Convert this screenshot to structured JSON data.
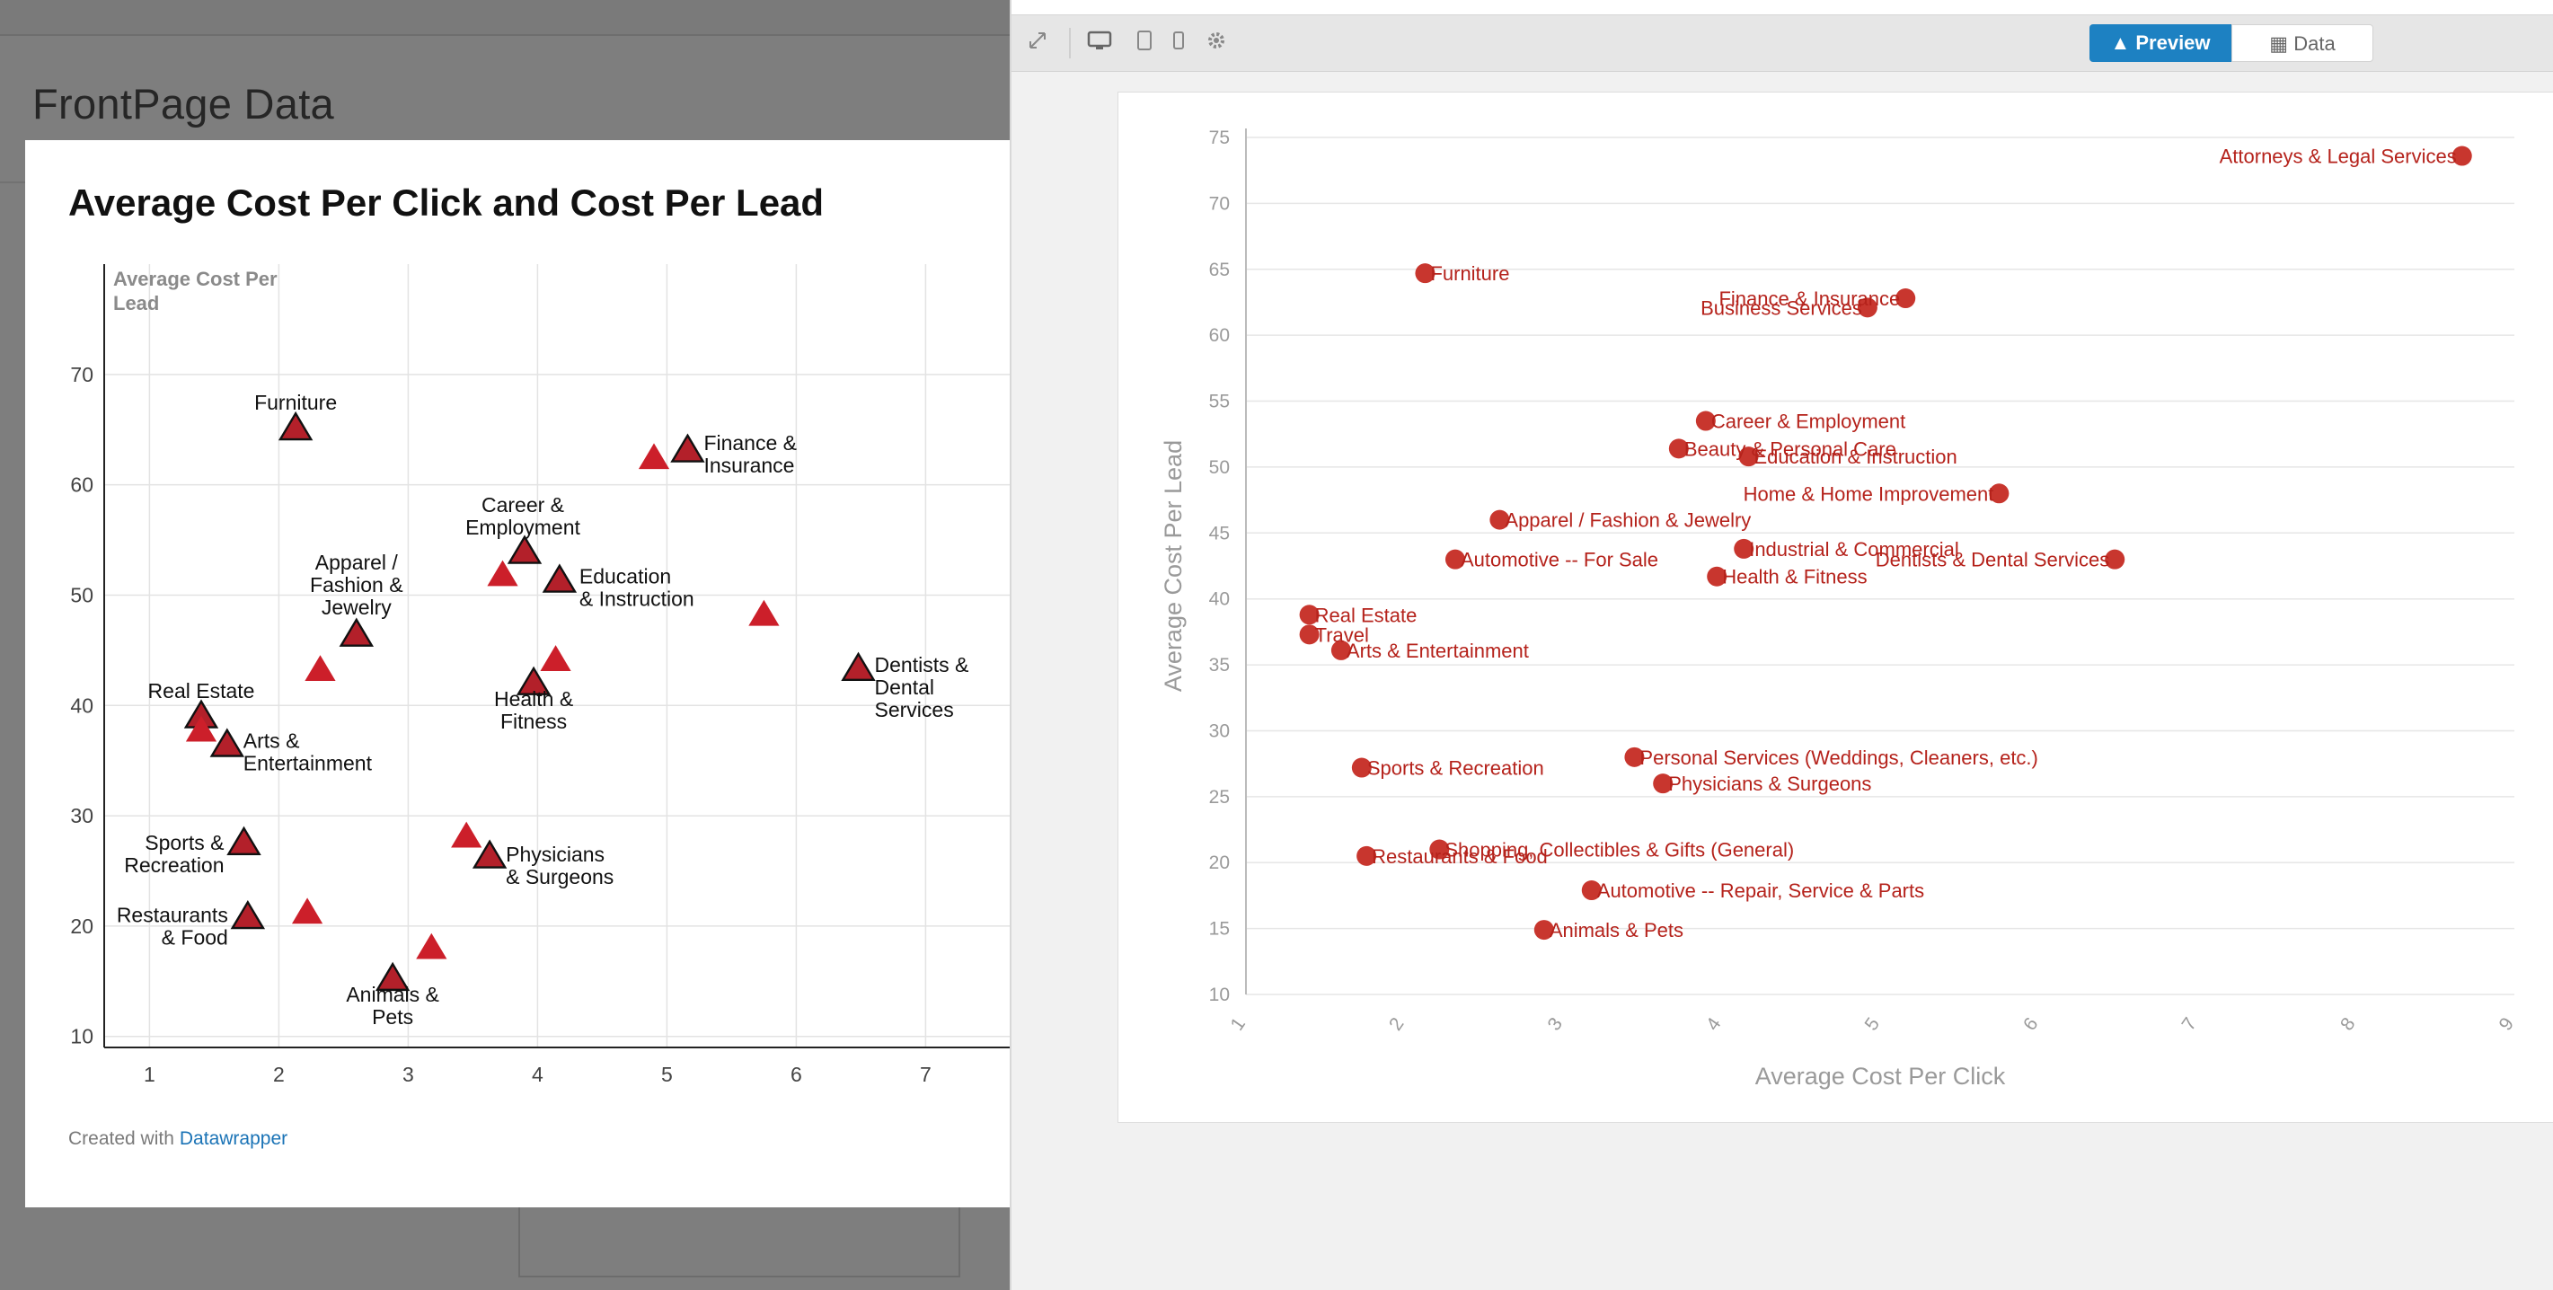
{
  "background": {
    "page_title": "FrontPage Data"
  },
  "published_chart": {
    "title": "Average Cost Per Click and Cost Per Lead",
    "footer_prefix": "Created with",
    "footer_link": "Datawrapper",
    "marker_color": "#cc1f2a",
    "highlight_color": "#b3202a"
  },
  "editor": {
    "tabs": {
      "preview": "Preview",
      "data": "Data"
    },
    "toolbar_icons": [
      "expand-icon",
      "desktop-icon",
      "tablet-icon",
      "mobile-icon",
      "settings-icon"
    ],
    "accent_color": "#1d81c2",
    "series_color": "#c8362e"
  },
  "chart_data": [
    {
      "type": "scatter",
      "title": "Average Cost Per Click and Cost Per Lead",
      "xlabel": "",
      "ylabel": "Average Cost Per Lead",
      "xlim": [
        0.65,
        7.65
      ],
      "ylim": [
        9,
        80
      ],
      "xticks": [
        1,
        2,
        3,
        4,
        5,
        6,
        7
      ],
      "yticks": [
        10,
        20,
        30,
        40,
        50,
        60,
        70
      ],
      "grid": true,
      "marker": "triangle",
      "points": [
        {
          "x": 2.13,
          "y": 65.0,
          "label": "Furniture",
          "highlight": true
        },
        {
          "x": 5.16,
          "y": 63.0,
          "label": "Finance & Insurance",
          "highlight": true
        },
        {
          "x": 4.9,
          "y": 62.3,
          "label": "",
          "highlight": false
        },
        {
          "x": 3.9,
          "y": 53.8,
          "label": "Career & Employment",
          "highlight": true
        },
        {
          "x": 3.73,
          "y": 51.7,
          "label": "",
          "highlight": false
        },
        {
          "x": 4.17,
          "y": 51.2,
          "label": "Education & Instruction",
          "highlight": true
        },
        {
          "x": 5.75,
          "y": 48.1,
          "label": "",
          "highlight": false
        },
        {
          "x": 2.6,
          "y": 46.3,
          "label": "Apparel / Fashion & Jewelry",
          "highlight": true
        },
        {
          "x": 2.32,
          "y": 43.1,
          "label": "",
          "highlight": false
        },
        {
          "x": 4.14,
          "y": 44.0,
          "label": "",
          "highlight": false
        },
        {
          "x": 6.48,
          "y": 43.2,
          "label": "Dentists & Dental Services",
          "highlight": true
        },
        {
          "x": 3.97,
          "y": 41.9,
          "label": "Health & Fitness",
          "highlight": true
        },
        {
          "x": 1.4,
          "y": 38.9,
          "label": "Real Estate",
          "highlight": true
        },
        {
          "x": 1.4,
          "y": 37.6,
          "label": "",
          "highlight": false
        },
        {
          "x": 1.6,
          "y": 36.3,
          "label": "Arts & Entertainment",
          "highlight": true
        },
        {
          "x": 1.73,
          "y": 27.4,
          "label": "Sports & Recreation",
          "highlight": true
        },
        {
          "x": 3.45,
          "y": 28.0,
          "label": "",
          "highlight": false
        },
        {
          "x": 3.63,
          "y": 26.2,
          "label": "Physicians & Surgeons",
          "highlight": true
        },
        {
          "x": 1.76,
          "y": 20.7,
          "label": "Restaurants & Food",
          "highlight": true
        },
        {
          "x": 2.22,
          "y": 21.1,
          "label": "",
          "highlight": false
        },
        {
          "x": 3.18,
          "y": 17.9,
          "label": "",
          "highlight": false
        },
        {
          "x": 2.88,
          "y": 15.1,
          "label": "Animals & Pets",
          "highlight": true
        }
      ]
    },
    {
      "type": "scatter",
      "xlabel": "Average Cost Per Click",
      "ylabel": "Average Cost Per Lead",
      "xlim": [
        1,
        9
      ],
      "ylim": [
        10,
        75
      ],
      "xticks": [
        1,
        2,
        3,
        4,
        5,
        6,
        7,
        8,
        9
      ],
      "yticks": [
        10,
        15,
        20,
        25,
        30,
        35,
        40,
        45,
        50,
        55,
        60,
        65,
        70,
        75
      ],
      "grid": true,
      "marker": "circle",
      "points": [
        {
          "x": 8.67,
          "y": 73.6,
          "label": "Attorneys & Legal Services",
          "anchor": "end"
        },
        {
          "x": 2.13,
          "y": 64.7,
          "label": "Furniture",
          "anchor": "start"
        },
        {
          "x": 5.16,
          "y": 62.8,
          "label": "Finance & Insurance",
          "anchor": "end"
        },
        {
          "x": 4.92,
          "y": 62.1,
          "label": "Business Services",
          "anchor": "end"
        },
        {
          "x": 3.9,
          "y": 53.5,
          "label": "Career & Employment",
          "anchor": "start"
        },
        {
          "x": 3.73,
          "y": 51.4,
          "label": "Beauty & Personal Care",
          "anchor": "start"
        },
        {
          "x": 4.17,
          "y": 50.8,
          "label": "Education & Instruction",
          "anchor": "start"
        },
        {
          "x": 5.75,
          "y": 48.0,
          "label": "Home & Home Improvement",
          "anchor": "end"
        },
        {
          "x": 2.6,
          "y": 46.0,
          "label": "Apparel / Fashion & Jewelry",
          "anchor": "start"
        },
        {
          "x": 2.32,
          "y": 43.0,
          "label": "Automotive -- For Sale",
          "anchor": "start"
        },
        {
          "x": 4.14,
          "y": 43.8,
          "label": "Industrial & Commercial",
          "anchor": "start"
        },
        {
          "x": 6.48,
          "y": 43.0,
          "label": "Dentists & Dental Services",
          "anchor": "end"
        },
        {
          "x": 3.97,
          "y": 41.7,
          "label": "Health & Fitness",
          "anchor": "start"
        },
        {
          "x": 1.4,
          "y": 38.8,
          "label": "Real Estate",
          "anchor": "start"
        },
        {
          "x": 1.4,
          "y": 37.3,
          "label": "Travel",
          "anchor": "start"
        },
        {
          "x": 1.6,
          "y": 36.1,
          "label": "Arts & Entertainment",
          "anchor": "start"
        },
        {
          "x": 1.73,
          "y": 27.2,
          "label": "Sports & Recreation",
          "anchor": "start"
        },
        {
          "x": 3.45,
          "y": 28.0,
          "label": "Personal Services (Weddings, Cleaners, etc.)",
          "anchor": "start"
        },
        {
          "x": 3.63,
          "y": 26.0,
          "label": "Physicians & Surgeons",
          "anchor": "start"
        },
        {
          "x": 1.76,
          "y": 20.5,
          "label": "Restaurants & Food",
          "anchor": "start"
        },
        {
          "x": 2.22,
          "y": 21.0,
          "label": "Shopping, Collectibles & Gifts (General)",
          "anchor": "start"
        },
        {
          "x": 3.18,
          "y": 17.9,
          "label": "Automotive -- Repair, Service & Parts",
          "anchor": "start"
        },
        {
          "x": 2.88,
          "y": 14.9,
          "label": "Animals & Pets",
          "anchor": "start"
        }
      ]
    }
  ]
}
